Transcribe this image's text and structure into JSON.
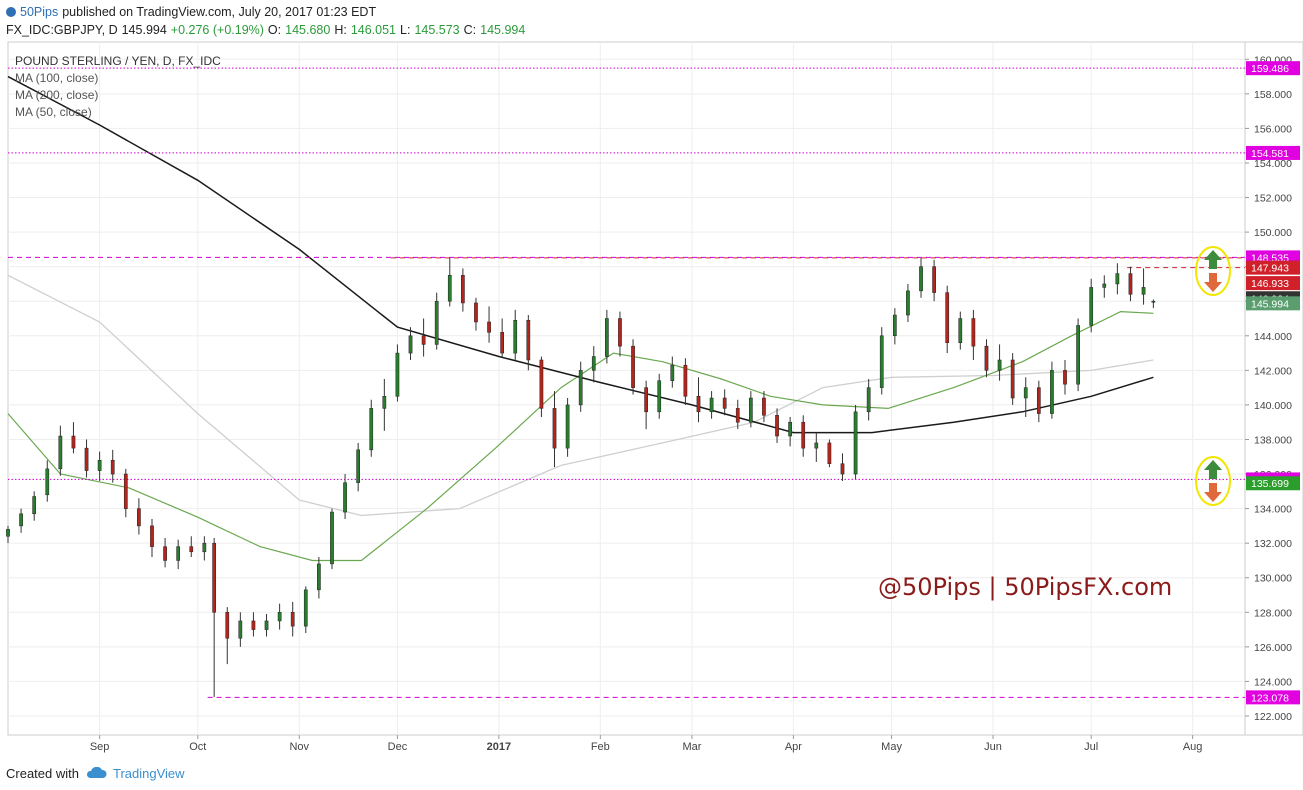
{
  "header": {
    "publisher": "50Pips",
    "published_text": "published on TradingView.com, July 20, 2017 01:23 EDT",
    "symbol_line": "FX_IDC:GBPJPY, D",
    "last_price": "145.994",
    "change": "+0.276 (+0.19%)",
    "o_label": "O:",
    "o_value": "145.680",
    "h_label": "H:",
    "h_value": "146.051",
    "l_label": "L:",
    "l_value": "145.573",
    "c_label": "C:",
    "c_value": "145.994"
  },
  "legend": {
    "title": "POUND STERLING / YEN, D, FX_IDC",
    "ma1": "MA (100, close)",
    "ma2": "MA (200, close)",
    "ma3": "MA (50, close)"
  },
  "watermark": "@50Pips | 50PipsFX.com",
  "footer": {
    "created_with": "Created with",
    "brand": "TradingView"
  },
  "colors": {
    "up": "#2a7d2e",
    "down": "#b3261e",
    "ma50": "#6aa84f",
    "ma100": "#cfcfcf",
    "ma200": "#1a1a1a",
    "level_magenta": "#d000d0",
    "level_red": "#d0202a",
    "watermark": "#8b1a1a",
    "grid": "#eeeeee"
  },
  "chart_data": {
    "type": "candlestick",
    "y_range": [
      120.9,
      161.0
    ],
    "y_ticks": [
      "160.000",
      "158.000",
      "156.000",
      "154.000",
      "152.000",
      "150.000",
      "148.000",
      "146.000",
      "144.000",
      "142.000",
      "140.000",
      "138.000",
      "136.000",
      "134.000",
      "132.000",
      "130.000",
      "128.000",
      "126.000",
      "124.000",
      "122.000"
    ],
    "x_ticks": [
      {
        "label": "Sep",
        "date": "2016-09-01"
      },
      {
        "label": "Oct",
        "date": "2016-10-01"
      },
      {
        "label": "Nov",
        "date": "2016-11-01"
      },
      {
        "label": "Dec",
        "date": "2016-12-01"
      },
      {
        "label": "2017",
        "date": "2017-01-01"
      },
      {
        "label": "Feb",
        "date": "2017-02-01"
      },
      {
        "label": "Mar",
        "date": "2017-03-01"
      },
      {
        "label": "Apr",
        "date": "2017-04-01"
      },
      {
        "label": "May",
        "date": "2017-05-01"
      },
      {
        "label": "Jun",
        "date": "2017-06-01"
      },
      {
        "label": "Jul",
        "date": "2017-07-01"
      },
      {
        "label": "Aug",
        "date": "2017-08-01"
      }
    ],
    "x_range": [
      "2016-08-04",
      "2017-08-17"
    ],
    "levels": [
      {
        "value": 159.486,
        "label": "159.486",
        "style": "dotted",
        "color": "#d000d0",
        "from": "2016-08-04"
      },
      {
        "value": 154.581,
        "label": "154.581",
        "style": "dotted",
        "color": "#d000d0",
        "from": "2016-08-04"
      },
      {
        "value": 148.511,
        "label": "148.511",
        "style": "dashed",
        "color": "#d0202a",
        "from": "2016-11-29"
      },
      {
        "value": 148.535,
        "label": "148.535",
        "style": "dashed",
        "color": "#d000d0",
        "from": "2016-08-04"
      },
      {
        "value": 147.943,
        "label": "147.943",
        "style": "dashed",
        "color": "#d0202a",
        "from": "2017-07-12"
      },
      {
        "value": 135.688,
        "label": "135.688",
        "style": "dotted",
        "color": "#d000d0",
        "from": "2016-08-04"
      },
      {
        "value": 123.078,
        "label": "123.078",
        "style": "dashed",
        "color": "#d000d0",
        "from": "2016-10-04"
      }
    ],
    "price_tags": [
      {
        "value": 146.933,
        "label": "146.933",
        "color": "#d0202a"
      },
      {
        "value": 146.924,
        "label": "146.924",
        "color": "#333333"
      },
      {
        "value": 145.994,
        "label": "145.994",
        "color": "#5a9e6f"
      },
      {
        "value": 135.699,
        "label": "135.699",
        "color": "#2a9d2a"
      }
    ],
    "ma50": [
      [
        "2016-08-04",
        139.5
      ],
      [
        "2016-08-20",
        136.0
      ],
      [
        "2016-09-10",
        135.2
      ],
      [
        "2016-10-01",
        133.5
      ],
      [
        "2016-10-20",
        131.8
      ],
      [
        "2016-11-05",
        131.0
      ],
      [
        "2016-11-20",
        131.0
      ],
      [
        "2016-12-10",
        134.0
      ],
      [
        "2016-12-31",
        137.5
      ],
      [
        "2017-01-20",
        141.0
      ],
      [
        "2017-02-05",
        143.0
      ],
      [
        "2017-02-20",
        142.5
      ],
      [
        "2017-03-10",
        141.5
      ],
      [
        "2017-03-25",
        140.5
      ],
      [
        "2017-04-10",
        140.0
      ],
      [
        "2017-04-30",
        139.8
      ],
      [
        "2017-05-20",
        141.0
      ],
      [
        "2017-06-10",
        142.5
      ],
      [
        "2017-06-25",
        144.0
      ],
      [
        "2017-07-10",
        145.4
      ],
      [
        "2017-07-20",
        145.3
      ]
    ],
    "ma100": [
      [
        "2016-08-04",
        147.5
      ],
      [
        "2016-09-01",
        144.8
      ],
      [
        "2016-10-01",
        139.5
      ],
      [
        "2016-11-01",
        134.5
      ],
      [
        "2016-11-20",
        133.6
      ],
      [
        "2016-12-20",
        134.0
      ],
      [
        "2017-01-20",
        136.5
      ],
      [
        "2017-02-20",
        137.8
      ],
      [
        "2017-03-20",
        139.0
      ],
      [
        "2017-04-10",
        141.0
      ],
      [
        "2017-05-01",
        141.6
      ],
      [
        "2017-06-01",
        141.7
      ],
      [
        "2017-07-01",
        142.0
      ],
      [
        "2017-07-20",
        142.6
      ]
    ],
    "ma200": [
      [
        "2016-08-04",
        159.0
      ],
      [
        "2016-09-01",
        156.2
      ],
      [
        "2016-10-01",
        153.0
      ],
      [
        "2016-11-01",
        149.0
      ],
      [
        "2016-12-01",
        144.5
      ],
      [
        "2017-01-01",
        142.8
      ],
      [
        "2017-02-01",
        141.3
      ],
      [
        "2017-03-01",
        140.0
      ],
      [
        "2017-04-01",
        138.4
      ],
      [
        "2017-04-25",
        138.4
      ],
      [
        "2017-05-20",
        139.0
      ],
      [
        "2017-06-10",
        139.6
      ],
      [
        "2017-07-01",
        140.5
      ],
      [
        "2017-07-20",
        141.6
      ]
    ],
    "candles": [
      [
        "2016-08-04",
        132.4,
        133.0,
        132.0,
        132.8
      ],
      [
        "2016-08-08",
        133.0,
        134.0,
        132.6,
        133.7
      ],
      [
        "2016-08-12",
        133.7,
        135.0,
        133.3,
        134.7
      ],
      [
        "2016-08-16",
        134.8,
        136.8,
        134.4,
        136.3
      ],
      [
        "2016-08-20",
        136.3,
        138.8,
        135.9,
        138.2
      ],
      [
        "2016-08-24",
        138.2,
        139.0,
        137.2,
        137.5
      ],
      [
        "2016-08-28",
        137.5,
        138.0,
        135.8,
        136.2
      ],
      [
        "2016-09-01",
        136.2,
        137.3,
        135.6,
        136.8
      ],
      [
        "2016-09-05",
        136.8,
        137.4,
        135.5,
        136.0
      ],
      [
        "2016-09-09",
        136.0,
        136.3,
        133.5,
        134.0
      ],
      [
        "2016-09-13",
        134.0,
        134.6,
        132.5,
        133.0
      ],
      [
        "2016-09-17",
        133.0,
        133.4,
        131.2,
        131.8
      ],
      [
        "2016-09-21",
        131.8,
        132.3,
        130.6,
        131.0
      ],
      [
        "2016-09-25",
        131.0,
        132.2,
        130.5,
        131.8
      ],
      [
        "2016-09-29",
        131.8,
        132.4,
        131.2,
        131.5
      ],
      [
        "2016-10-03",
        131.5,
        132.4,
        131.0,
        132.0
      ],
      [
        "2016-10-06",
        132.0,
        132.3,
        123.1,
        128.0
      ],
      [
        "2016-10-10",
        128.0,
        128.3,
        125.0,
        126.5
      ],
      [
        "2016-10-14",
        126.5,
        128.0,
        126.0,
        127.5
      ],
      [
        "2016-10-18",
        127.5,
        128.0,
        126.6,
        127.0
      ],
      [
        "2016-10-22",
        127.0,
        127.9,
        126.6,
        127.5
      ],
      [
        "2016-10-26",
        127.5,
        128.5,
        127.0,
        128.0
      ],
      [
        "2016-10-30",
        128.0,
        128.6,
        126.6,
        127.2
      ],
      [
        "2016-11-03",
        127.2,
        129.5,
        126.8,
        129.3
      ],
      [
        "2016-11-07",
        129.3,
        131.2,
        128.8,
        130.8
      ],
      [
        "2016-11-11",
        130.8,
        134.0,
        130.5,
        133.8
      ],
      [
        "2016-11-15",
        133.8,
        136.0,
        133.4,
        135.5
      ],
      [
        "2016-11-19",
        135.5,
        137.8,
        135.0,
        137.4
      ],
      [
        "2016-11-23",
        137.4,
        140.3,
        137.0,
        139.8
      ],
      [
        "2016-11-27",
        139.8,
        141.5,
        138.5,
        140.5
      ],
      [
        "2016-12-01",
        140.5,
        143.5,
        140.2,
        143.0
      ],
      [
        "2016-12-05",
        143.0,
        144.5,
        142.6,
        144.0
      ],
      [
        "2016-12-09",
        144.0,
        145.0,
        142.8,
        143.5
      ],
      [
        "2016-12-13",
        143.5,
        146.5,
        143.2,
        146.0
      ],
      [
        "2016-12-17",
        146.0,
        148.5,
        145.7,
        147.5
      ],
      [
        "2016-12-21",
        147.5,
        147.9,
        145.4,
        145.9
      ],
      [
        "2016-12-25",
        145.9,
        146.2,
        144.3,
        144.8
      ],
      [
        "2016-12-29",
        144.8,
        145.7,
        143.6,
        144.2
      ],
      [
        "2017-01-02",
        144.2,
        145.0,
        142.8,
        143.0
      ],
      [
        "2017-01-06",
        143.0,
        145.5,
        142.6,
        144.9
      ],
      [
        "2017-01-10",
        144.9,
        145.2,
        142.0,
        142.6
      ],
      [
        "2017-01-14",
        142.6,
        142.8,
        139.3,
        139.8
      ],
      [
        "2017-01-18",
        139.8,
        140.8,
        136.4,
        137.5
      ],
      [
        "2017-01-22",
        137.5,
        140.4,
        137.0,
        140.0
      ],
      [
        "2017-01-26",
        140.0,
        142.5,
        139.6,
        142.0
      ],
      [
        "2017-01-30",
        142.0,
        143.4,
        141.3,
        142.8
      ],
      [
        "2017-02-03",
        142.8,
        145.5,
        142.4,
        145.0
      ],
      [
        "2017-02-07",
        145.0,
        145.4,
        142.8,
        143.4
      ],
      [
        "2017-02-11",
        143.4,
        143.8,
        140.6,
        141.0
      ],
      [
        "2017-02-15",
        141.0,
        141.4,
        138.6,
        139.6
      ],
      [
        "2017-02-19",
        139.6,
        141.8,
        139.2,
        141.4
      ],
      [
        "2017-02-23",
        141.4,
        142.8,
        141.0,
        142.3
      ],
      [
        "2017-02-27",
        142.3,
        142.7,
        140.0,
        140.5
      ],
      [
        "2017-03-03",
        140.5,
        141.6,
        139.0,
        139.6
      ],
      [
        "2017-03-07",
        139.6,
        140.8,
        139.2,
        140.4
      ],
      [
        "2017-03-11",
        140.4,
        140.9,
        139.4,
        139.8
      ],
      [
        "2017-03-15",
        139.8,
        140.3,
        138.6,
        139.0
      ],
      [
        "2017-03-19",
        139.0,
        140.8,
        138.7,
        140.4
      ],
      [
        "2017-03-23",
        140.4,
        140.8,
        139.0,
        139.4
      ],
      [
        "2017-03-27",
        139.4,
        139.8,
        137.8,
        138.2
      ],
      [
        "2017-03-31",
        138.2,
        139.3,
        137.6,
        139.0
      ],
      [
        "2017-04-04",
        139.0,
        139.4,
        137.0,
        137.5
      ],
      [
        "2017-04-08",
        137.5,
        138.4,
        136.7,
        137.8
      ],
      [
        "2017-04-12",
        137.8,
        138.0,
        136.4,
        136.6
      ],
      [
        "2017-04-16",
        136.6,
        137.2,
        135.6,
        136.0
      ],
      [
        "2017-04-20",
        136.0,
        140.0,
        135.7,
        139.6
      ],
      [
        "2017-04-24",
        139.6,
        141.5,
        139.1,
        141.0
      ],
      [
        "2017-04-28",
        141.0,
        144.5,
        140.6,
        144.0
      ],
      [
        "2017-05-02",
        144.0,
        145.6,
        143.5,
        145.2
      ],
      [
        "2017-05-06",
        145.2,
        147.0,
        144.8,
        146.6
      ],
      [
        "2017-05-10",
        146.6,
        148.5,
        146.2,
        148.0
      ],
      [
        "2017-05-14",
        148.0,
        148.4,
        146.0,
        146.5
      ],
      [
        "2017-05-18",
        146.5,
        146.9,
        143.0,
        143.6
      ],
      [
        "2017-05-22",
        143.6,
        145.4,
        143.2,
        145.0
      ],
      [
        "2017-05-26",
        145.0,
        145.5,
        142.6,
        143.4
      ],
      [
        "2017-05-30",
        143.4,
        143.8,
        141.6,
        142.0
      ],
      [
        "2017-06-03",
        142.0,
        143.5,
        141.4,
        142.6
      ],
      [
        "2017-06-07",
        142.6,
        143.0,
        140.0,
        140.4
      ],
      [
        "2017-06-11",
        140.4,
        141.6,
        139.3,
        141.0
      ],
      [
        "2017-06-15",
        141.0,
        141.4,
        139.0,
        139.5
      ],
      [
        "2017-06-19",
        139.5,
        142.5,
        139.2,
        142.0
      ],
      [
        "2017-06-23",
        142.0,
        142.6,
        140.6,
        141.2
      ],
      [
        "2017-06-27",
        141.2,
        145.0,
        140.8,
        144.6
      ],
      [
        "2017-07-01",
        144.6,
        147.3,
        144.2,
        146.8
      ],
      [
        "2017-07-05",
        146.8,
        147.5,
        146.2,
        147.0
      ],
      [
        "2017-07-09",
        147.0,
        148.2,
        146.4,
        147.6
      ],
      [
        "2017-07-13",
        147.6,
        148.0,
        146.0,
        146.4
      ],
      [
        "2017-07-17",
        146.4,
        147.9,
        145.8,
        146.8
      ],
      [
        "2017-07-20",
        146.0,
        146.1,
        145.6,
        146.0
      ]
    ]
  }
}
